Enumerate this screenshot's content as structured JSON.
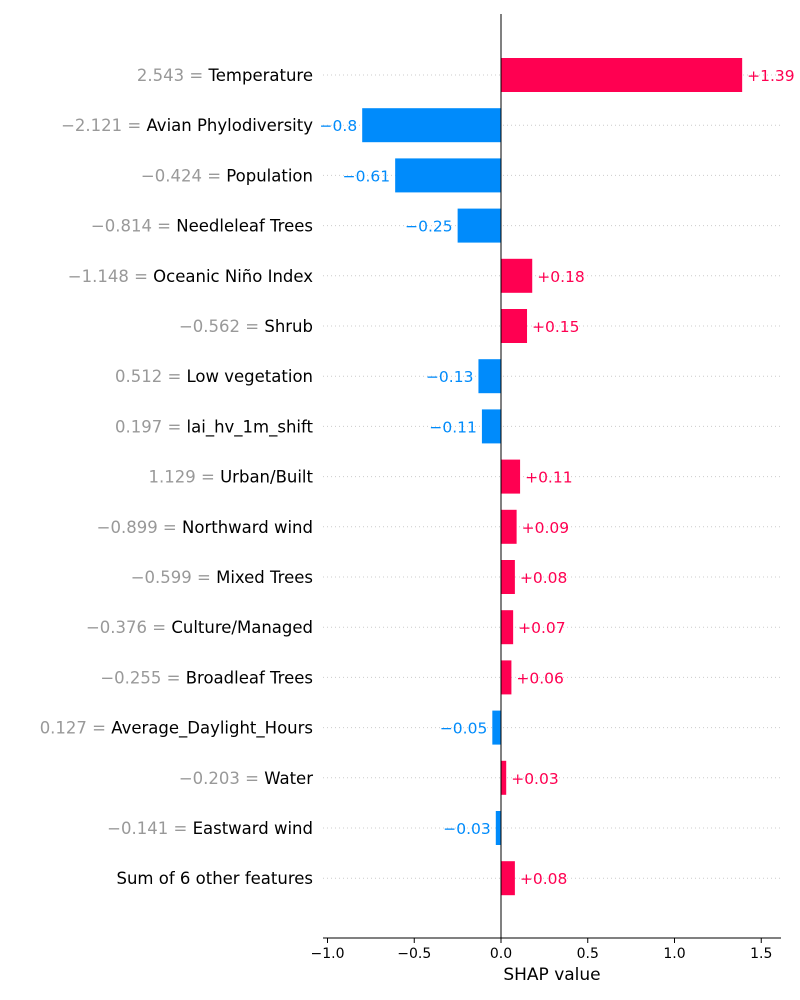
{
  "chart_data": {
    "type": "bar",
    "orientation": "horizontal",
    "xlabel": "SHAP value",
    "xlim": [
      -1.03,
      1.62
    ],
    "xticks": [
      -1.0,
      -0.5,
      0.0,
      0.5,
      1.0,
      1.5
    ],
    "xtick_labels": [
      "−1.0",
      "−0.5",
      "0.0",
      "0.5",
      "1.0",
      "1.5"
    ],
    "grid": "dotted horizontal row lines",
    "colors": {
      "positive": "#ff0051",
      "negative": "#008bfb",
      "feature_value": "#999999",
      "axis": "#000000"
    },
    "rows": [
      {
        "feature_value": "2.543 =",
        "feature": "Temperature",
        "value": 1.39,
        "label": "+1.39"
      },
      {
        "feature_value": "−2.121 =",
        "feature": "Avian Phylodiversity",
        "value": -0.8,
        "label": "−0.8"
      },
      {
        "feature_value": "−0.424 =",
        "feature": "Population",
        "value": -0.61,
        "label": "−0.61"
      },
      {
        "feature_value": "−0.814 =",
        "feature": "Needleleaf Trees",
        "value": -0.25,
        "label": "−0.25"
      },
      {
        "feature_value": "−1.148 =",
        "feature": "Oceanic Niño Index",
        "value": 0.18,
        "label": "+0.18"
      },
      {
        "feature_value": "−0.562 =",
        "feature": "Shrub",
        "value": 0.15,
        "label": "+0.15"
      },
      {
        "feature_value": "0.512 =",
        "feature": "Low vegetation",
        "value": -0.13,
        "label": "−0.13"
      },
      {
        "feature_value": "0.197 =",
        "feature": "lai_hv_1m_shift",
        "value": -0.11,
        "label": "−0.11"
      },
      {
        "feature_value": "1.129 =",
        "feature": "Urban/Built",
        "value": 0.11,
        "label": "+0.11"
      },
      {
        "feature_value": "−0.899 =",
        "feature": "Northward wind",
        "value": 0.09,
        "label": "+0.09"
      },
      {
        "feature_value": "−0.599 =",
        "feature": "Mixed Trees",
        "value": 0.08,
        "label": "+0.08"
      },
      {
        "feature_value": "−0.376 =",
        "feature": "Culture/Managed",
        "value": 0.07,
        "label": "+0.07"
      },
      {
        "feature_value": "−0.255 =",
        "feature": "Broadleaf Trees",
        "value": 0.06,
        "label": "+0.06"
      },
      {
        "feature_value": "0.127 =",
        "feature": "Average_Daylight_Hours",
        "value": -0.05,
        "label": "−0.05"
      },
      {
        "feature_value": "−0.203 =",
        "feature": "Water",
        "value": 0.03,
        "label": "+0.03"
      },
      {
        "feature_value": "−0.141 =",
        "feature": "Eastward wind",
        "value": -0.03,
        "label": "−0.03"
      },
      {
        "feature_value": "",
        "feature": "Sum of 6 other features",
        "value": 0.08,
        "label": "+0.08"
      }
    ]
  }
}
